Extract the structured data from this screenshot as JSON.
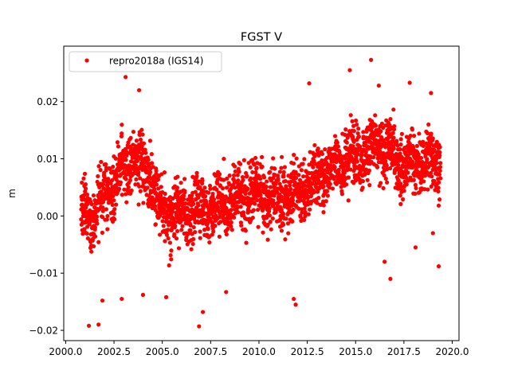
{
  "chart_data": {
    "type": "scatter",
    "title": "FGST V",
    "xlabel": "",
    "ylabel": "m",
    "xlim": [
      1999.9,
      2020.35
    ],
    "ylim": [
      -0.0218,
      0.0297
    ],
    "x_ticks": [
      2000.0,
      2002.5,
      2005.0,
      2007.5,
      2010.0,
      2012.5,
      2015.0,
      2017.5,
      2020.0
    ],
    "x_tick_labels": [
      "2000.0",
      "2002.5",
      "2005.0",
      "2007.5",
      "2010.0",
      "2012.5",
      "2015.0",
      "2017.5",
      "2020.0"
    ],
    "y_ticks": [
      -0.02,
      -0.01,
      0.0,
      0.01,
      0.02
    ],
    "y_tick_labels": [
      "−0.02",
      "−0.01",
      "0.00",
      "0.01",
      "0.02"
    ],
    "grid": false,
    "legend": {
      "position": "top-left",
      "entries": [
        {
          "label": "repro2018a (IGS14)",
          "color": "#ff0000",
          "marker": "circle"
        }
      ]
    },
    "series": [
      {
        "name": "repro2018a (IGS14)",
        "color": "#ff0000",
        "x_range": [
          2000.8,
          2019.4
        ],
        "trend_knots": [
          [
            2000.8,
            0.0
          ],
          [
            2001.5,
            0.001
          ],
          [
            2002.5,
            0.006
          ],
          [
            2003.5,
            0.01
          ],
          [
            2004.3,
            0.008
          ],
          [
            2005.0,
            0.0
          ],
          [
            2006.5,
            0.001
          ],
          [
            2008.0,
            0.002
          ],
          [
            2009.5,
            0.004
          ],
          [
            2011.0,
            0.003
          ],
          [
            2012.5,
            0.005
          ],
          [
            2013.5,
            0.008
          ],
          [
            2015.0,
            0.011
          ],
          [
            2016.5,
            0.012
          ],
          [
            2017.5,
            0.009
          ],
          [
            2019.4,
            0.01
          ]
        ],
        "scatter_sd": 0.0042,
        "notable_points": [
          {
            "x": 2001.2,
            "y": -0.0192
          },
          {
            "x": 2001.7,
            "y": -0.019
          },
          {
            "x": 2001.9,
            "y": -0.0148
          },
          {
            "x": 2002.9,
            "y": -0.0145
          },
          {
            "x": 2004.0,
            "y": -0.0138
          },
          {
            "x": 2005.2,
            "y": -0.0142
          },
          {
            "x": 2006.9,
            "y": -0.0193
          },
          {
            "x": 2007.1,
            "y": -0.0168
          },
          {
            "x": 2008.3,
            "y": -0.0133
          },
          {
            "x": 2011.8,
            "y": -0.0145
          },
          {
            "x": 2011.9,
            "y": -0.0155
          },
          {
            "x": 2003.1,
            "y": 0.0243
          },
          {
            "x": 2003.8,
            "y": 0.022
          },
          {
            "x": 2012.6,
            "y": 0.0232
          },
          {
            "x": 2014.7,
            "y": 0.0255
          },
          {
            "x": 2015.8,
            "y": 0.0273
          },
          {
            "x": 2016.2,
            "y": 0.0228
          },
          {
            "x": 2017.8,
            "y": 0.0233
          },
          {
            "x": 2018.9,
            "y": 0.0215
          },
          {
            "x": 2019.3,
            "y": -0.0088
          },
          {
            "x": 2016.8,
            "y": -0.011
          },
          {
            "x": 2016.5,
            "y": -0.008
          },
          {
            "x": 2018.1,
            "y": -0.0055
          },
          {
            "x": 2019.0,
            "y": -0.003
          }
        ]
      }
    ]
  }
}
